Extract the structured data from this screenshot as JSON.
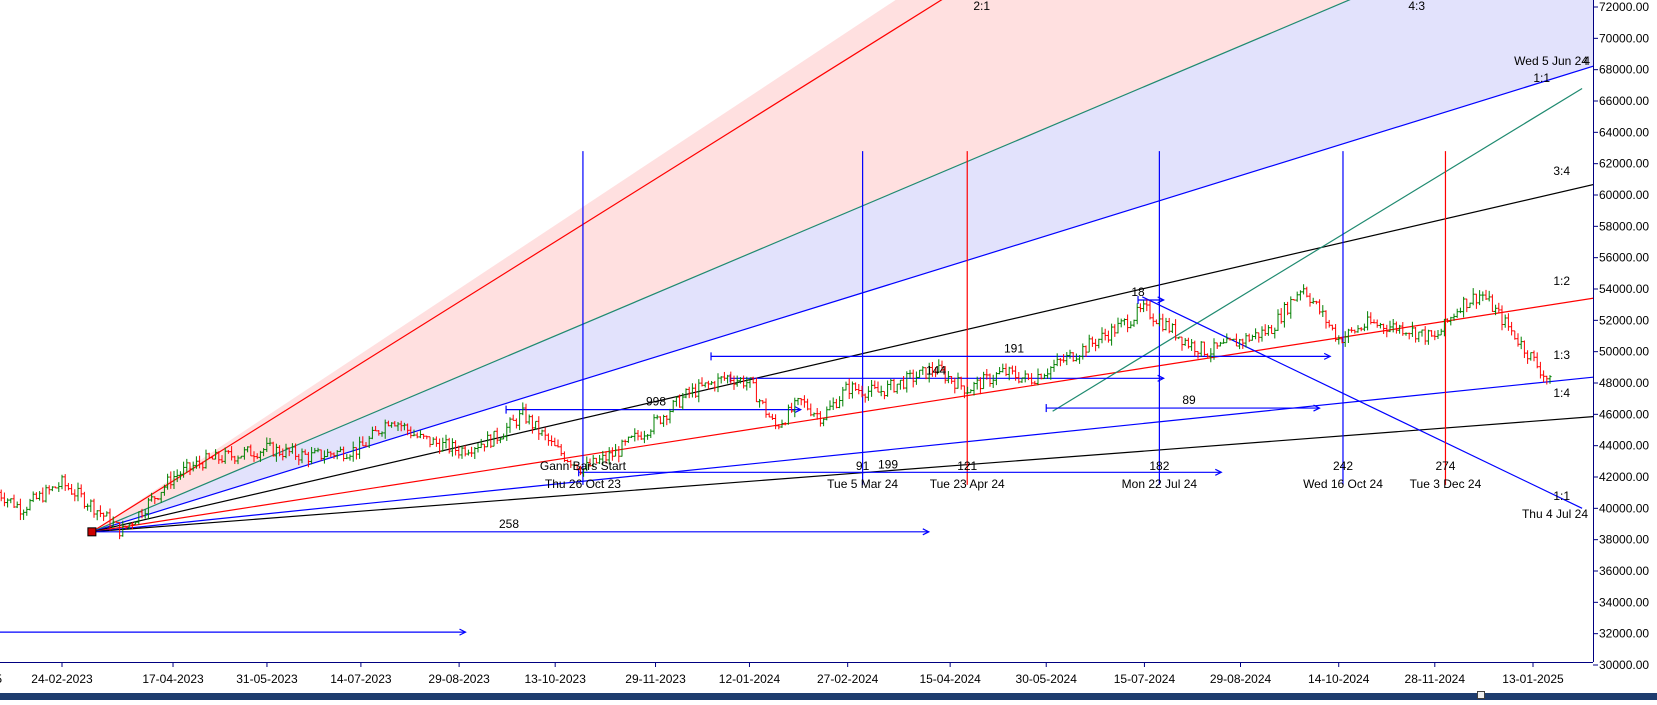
{
  "chart_data": {
    "type": "line",
    "title": "",
    "xlabel": "",
    "ylabel": "",
    "ylim": [
      29000,
      72500
    ],
    "grid": false,
    "x_tick_labels": [
      "24-02-2023",
      "17-04-2023",
      "31-05-2023",
      "14-07-2023",
      "29-08-2023",
      "13-10-2023",
      "29-11-2023",
      "12-01-2024",
      "27-02-2024",
      "15-04-2024",
      "30-05-2024",
      "15-07-2024",
      "29-08-2024",
      "14-10-2024",
      "28-11-2024",
      "13-01-2025"
    ],
    "y_tick_labels": [
      "72000.00",
      "70000.00",
      "68000.00",
      "66000.00",
      "64000.00",
      "62000.00",
      "60000.00",
      "58000.00",
      "56000.00",
      "54000.00",
      "52000.00",
      "50000.00",
      "48000.00",
      "46000.00",
      "44000.00",
      "42000.00",
      "40000.00",
      "38000.00",
      "36000.00",
      "34000.00",
      "32000.00",
      "30000.00"
    ],
    "y_ticks": [
      72000,
      70000,
      68000,
      66000,
      64000,
      62000,
      60000,
      58000,
      56000,
      54000,
      52000,
      50000,
      48000,
      46000,
      44000,
      42000,
      40000,
      38000,
      36000,
      34000,
      32000,
      30000
    ],
    "x_tick_dates": [
      "2023-02-24",
      "2023-04-17",
      "2023-05-31",
      "2023-07-14",
      "2023-08-29",
      "2023-10-13",
      "2023-11-29",
      "2024-01-12",
      "2024-02-27",
      "2024-04-15",
      "2024-05-30",
      "2024-07-15",
      "2024-08-29",
      "2024-10-14",
      "2024-11-28",
      "2025-01-13"
    ],
    "price_series": {
      "name": "",
      "x": [
        "2023-01-01",
        "2023-01-20",
        "2023-02-05",
        "2023-02-24",
        "2023-03-10",
        "2023-03-24",
        "2023-04-17",
        "2023-05-01",
        "2023-05-31",
        "2023-06-20",
        "2023-07-14",
        "2023-07-28",
        "2023-08-10",
        "2023-08-29",
        "2023-09-15",
        "2023-09-28",
        "2023-10-13",
        "2023-10-26",
        "2023-11-10",
        "2023-11-29",
        "2023-12-14",
        "2024-01-02",
        "2024-01-12",
        "2024-01-24",
        "2024-02-05",
        "2024-02-15",
        "2024-02-27",
        "2024-03-12",
        "2024-03-28",
        "2024-04-08",
        "2024-04-23",
        "2024-05-10",
        "2024-05-22",
        "2024-06-04",
        "2024-06-14",
        "2024-07-02",
        "2024-07-15",
        "2024-07-24",
        "2024-08-05",
        "2024-08-14",
        "2024-08-29",
        "2024-09-12",
        "2024-09-27",
        "2024-10-14",
        "2024-10-28",
        "2024-11-14",
        "2024-11-28",
        "2024-12-10",
        "2024-12-20",
        "2025-01-03",
        "2025-01-13",
        "2025-01-21"
      ],
      "y": [
        40500,
        41500,
        40000,
        41600,
        40200,
        38500,
        42000,
        43000,
        43800,
        43300,
        43800,
        45800,
        44500,
        43700,
        44500,
        46000,
        43800,
        42500,
        43500,
        45500,
        47300,
        48400,
        48000,
        45200,
        46800,
        45800,
        47700,
        47400,
        48300,
        48900,
        47600,
        48700,
        48200,
        49200,
        50000,
        51500,
        52700,
        51800,
        50500,
        50000,
        50700,
        51400,
        54200,
        50800,
        51800,
        51500,
        50800,
        53000,
        53700,
        51300,
        49500,
        48000
      ]
    },
    "gann_fan_lines": [
      {
        "label": "2:1",
        "color": "#ff0000",
        "start": [
          "2023-03-10",
          38500
        ],
        "end": [
          "2024-04-15",
          72800
        ]
      },
      {
        "label": "4:3",
        "color": "#1f8a70",
        "start": [
          "2023-03-10",
          38500
        ],
        "end": [
          "2024-10-25",
          72800
        ]
      },
      {
        "label": "1:1",
        "color": "#0000ff",
        "start": [
          "2023-03-10",
          38500
        ],
        "end": [
          "2025-02-05",
          68000
        ]
      },
      {
        "label": "3:4",
        "color": "#000000",
        "start": [
          "2023-03-10",
          38500
        ],
        "end": [
          "2025-02-05",
          60500
        ]
      },
      {
        "label": "1:2",
        "color": "#ff0000",
        "start": [
          "2023-03-10",
          38500
        ],
        "end": [
          "2025-02-05",
          53300
        ]
      },
      {
        "label": "1:3",
        "color": "#0000ff",
        "start": [
          "2023-03-10",
          38500
        ],
        "end": [
          "2025-02-05",
          48300
        ]
      },
      {
        "label": "1:4",
        "color": "#000000",
        "start": [
          "2023-03-10",
          38500
        ],
        "end": [
          "2025-02-05",
          45800
        ]
      }
    ],
    "extra_lines": [
      {
        "label": "",
        "color": "#1f8a70",
        "start": [
          "2024-06-02",
          46200
        ],
        "end": [
          "2025-02-05",
          66800
        ]
      },
      {
        "label": "",
        "color": "#0000ff",
        "start": [
          "2024-07-14",
          53500
        ],
        "end": [
          "2025-02-05",
          40000
        ]
      }
    ],
    "horizontal_arrows": [
      {
        "label": "258",
        "color": "#0000ff",
        "y": 38500,
        "from": "2023-03-10",
        "to": "2024-04-05"
      },
      {
        "label": "",
        "color": "#0000ff",
        "y": 32100,
        "from": "2022-12-15",
        "to": "2023-09-01"
      },
      {
        "label": "199",
        "color": "#0000ff",
        "y": 42300,
        "from": "2023-10-24",
        "to": "2024-08-20"
      },
      {
        "label": "998",
        "color": "#0000ff",
        "y": 46300,
        "from": "2023-09-20",
        "to": "2024-02-05"
      },
      {
        "label": "144",
        "color": "#0000ff",
        "y": 48300,
        "from": "2024-01-03",
        "to": "2024-07-24"
      },
      {
        "label": "191",
        "color": "#0000ff",
        "y": 49700,
        "from": "2023-12-25",
        "to": "2024-10-10"
      },
      {
        "label": "89",
        "color": "#0000ff",
        "y": 46400,
        "from": "2024-05-30",
        "to": "2024-10-05"
      },
      {
        "label": "18",
        "color": "#0000ff",
        "y": 53300,
        "from": "2024-07-12",
        "to": "2024-07-24"
      }
    ],
    "vertical_lines": [
      {
        "date": "2023-10-26",
        "color": "#0000ff",
        "count": "",
        "label": "Gann Bars Start",
        "date_label": "Thu 26 Oct 23"
      },
      {
        "date": "2024-03-05",
        "color": "#0000ff",
        "count": "91",
        "label": "",
        "date_label": "Tue 5 Mar 24"
      },
      {
        "date": "2024-04-23",
        "color": "#ff0000",
        "count": "121",
        "label": "",
        "date_label": "Tue 23 Apr 24"
      },
      {
        "date": "2024-07-22",
        "color": "#0000ff",
        "count": "182",
        "label": "",
        "date_label": "Mon 22 Jul 24"
      },
      {
        "date": "2024-10-16",
        "color": "#0000ff",
        "count": "242",
        "label": "",
        "date_label": "Wed 16 Oct 24"
      },
      {
        "date": "2024-12-03",
        "color": "#ff0000",
        "count": "274",
        "label": "",
        "date_label": "Tue 3 Dec 24"
      }
    ],
    "annotations": [
      {
        "text": "Wed 5 Jun 24",
        "color": "#000000"
      },
      {
        "text": "1:1",
        "color": "#000000"
      },
      {
        "text": "Thu 4 Jul 24",
        "color": "#000000"
      }
    ],
    "pivot_marker": {
      "date": "2023-03-10",
      "value": 38500,
      "color": "#cc0000"
    },
    "colors": {
      "bull": "#008000",
      "bear": "#ff0000",
      "fan_fill_red": "#ffe0e0",
      "fan_fill_blue": "#e2e2fc",
      "axis": "#000080"
    }
  }
}
